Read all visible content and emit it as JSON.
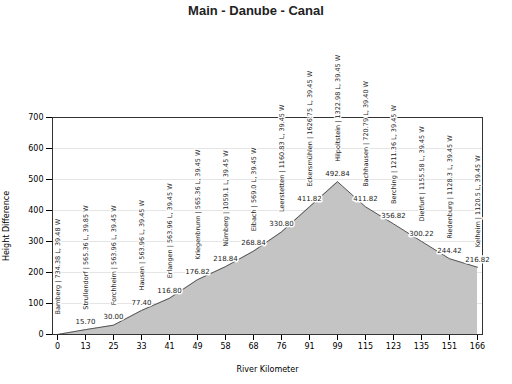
{
  "chart_data": {
    "type": "area",
    "title": "Main - Danube - Canal",
    "x_label": "River Kilometer",
    "y_label": "Height Difference",
    "categories": [
      "0",
      "13",
      "25",
      "33",
      "41",
      "49",
      "58",
      "68",
      "76",
      "91",
      "99",
      "115",
      "123",
      "135",
      "151",
      "166"
    ],
    "values": [
      0,
      15.7,
      30.0,
      77.4,
      116.8,
      176.82,
      218.84,
      268.84,
      330.8,
      411.82,
      492.84,
      411.82,
      356.82,
      300.22,
      244.42,
      216.82
    ],
    "value_labels": [
      null,
      "15.70",
      "30.00",
      "77.40",
      "116.80",
      "176.82",
      "218.84",
      "268.84",
      "330.80",
      "411.82",
      "492.84",
      "411.82",
      "356.82",
      "300.22",
      "244.42",
      "216.82"
    ],
    "lock_labels": [
      "Bamberg | 734.38 L, 39.48 W",
      "Strullendorf | 565.36 L, 39.85 W",
      "Forchheim | 563.96 L, 39.45 W",
      "Hausen | 563.96 L, 39.45 W",
      "Erlangen | 563.96 L, 39.45 W",
      "Kriegenbrunn | 565.36 L, 39.45 W",
      "Nürnberg | 1059.1 L, 39.45 W",
      "Eibach | 569.0 L, 39.45 W",
      "Leerstetten | 1160.83 L, 39.45 W",
      "Eckersmühlen | 1626.75 L, 39.45 W",
      "Hilpoltstein | 1322.98 L, 39.45 W",
      "Bachhausen | 720.79 L, 39.40 W",
      "Berching | 1211.36 L, 39.45 W",
      "Dietfurt | 1155.58 L, 39.45 W",
      "Riedenburg | 1128.3 L, 39.45 W",
      "Kelheim | 1120.5 L, 39.45 W"
    ],
    "color": "#c4c4c4",
    "ylim": [
      0,
      700
    ],
    "yticks": [
      0,
      100,
      200,
      300,
      400,
      500,
      600,
      700
    ],
    "grid": true,
    "data_labels": true
  }
}
